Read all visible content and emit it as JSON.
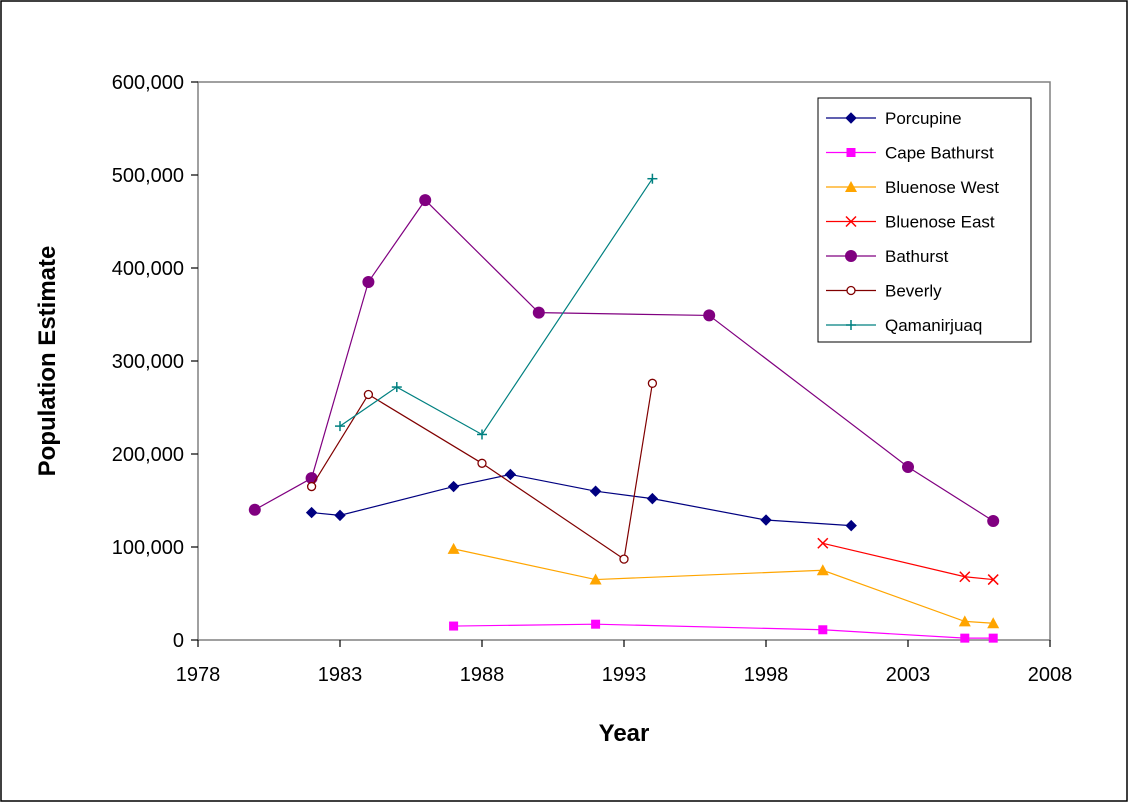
{
  "chart_data": {
    "type": "line",
    "title": "",
    "xlabel": "Year",
    "ylabel": "Population Estimate",
    "xlim": [
      1978,
      2008
    ],
    "ylim": [
      0,
      600000
    ],
    "xticks": [
      1978,
      1983,
      1988,
      1993,
      1998,
      2003,
      2008
    ],
    "yticks": [
      0,
      100000,
      200000,
      300000,
      400000,
      500000,
      600000
    ],
    "xtick_labels": [
      "1978",
      "1983",
      "1988",
      "1993",
      "1998",
      "2003",
      "2008"
    ],
    "ytick_labels": [
      "0",
      "100,000",
      "200,000",
      "300,000",
      "400,000",
      "500,000",
      "600,000"
    ],
    "grid": false,
    "legend_position": "top-right",
    "series": [
      {
        "name": "Porcupine",
        "color": "#000080",
        "marker": "diamond",
        "points": [
          [
            1982,
            137000
          ],
          [
            1983,
            134000
          ],
          [
            1987,
            165000
          ],
          [
            1989,
            178000
          ],
          [
            1992,
            160000
          ],
          [
            1994,
            152000
          ],
          [
            1998,
            129000
          ],
          [
            2001,
            123000
          ]
        ]
      },
      {
        "name": "Cape Bathurst",
        "color": "#ff00ff",
        "marker": "square",
        "points": [
          [
            1987,
            15000
          ],
          [
            1992,
            17000
          ],
          [
            2000,
            11000
          ],
          [
            2005,
            2000
          ],
          [
            2006,
            2000
          ]
        ]
      },
      {
        "name": "Bluenose West",
        "color": "#ffa500",
        "marker": "triangle",
        "points": [
          [
            1987,
            98000
          ],
          [
            1992,
            65000
          ],
          [
            2000,
            75000
          ],
          [
            2005,
            20000
          ],
          [
            2006,
            18000
          ]
        ]
      },
      {
        "name": "Bluenose East",
        "color": "#ff0000",
        "marker": "x",
        "points": [
          [
            2000,
            104000
          ],
          [
            2005,
            68000
          ],
          [
            2006,
            65000
          ]
        ]
      },
      {
        "name": "Bathurst",
        "color": "#800080",
        "marker": "circle",
        "points": [
          [
            1980,
            140000
          ],
          [
            1982,
            174000
          ],
          [
            1984,
            385000
          ],
          [
            1986,
            473000
          ],
          [
            1990,
            352000
          ],
          [
            1996,
            349000
          ],
          [
            2003,
            186000
          ],
          [
            2006,
            128000
          ]
        ]
      },
      {
        "name": "Beverly",
        "color": "#800000",
        "marker": "open-circle",
        "points": [
          [
            1982,
            165000
          ],
          [
            1984,
            264000
          ],
          [
            1988,
            190000
          ],
          [
            1993,
            87000
          ],
          [
            1994,
            276000
          ]
        ]
      },
      {
        "name": "Qamanirjuaq",
        "color": "#008080",
        "marker": "plus",
        "points": [
          [
            1983,
            230000
          ],
          [
            1985,
            272000
          ],
          [
            1988,
            221000
          ],
          [
            1994,
            496000
          ]
        ]
      }
    ]
  }
}
